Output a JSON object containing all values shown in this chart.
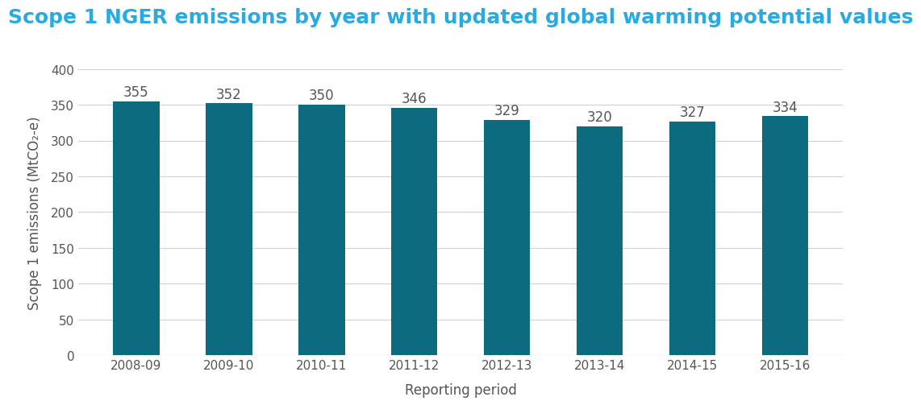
{
  "title": "Scope 1 NGER emissions by year with updated global warming potential values",
  "title_color": "#29ABE2",
  "categories": [
    "2008-09",
    "2009-10",
    "2010-11",
    "2011-12",
    "2012-13",
    "2013-14",
    "2014-15",
    "2015-16"
  ],
  "values": [
    355,
    352,
    350,
    346,
    329,
    320,
    327,
    334
  ],
  "bar_color": "#0C6B7E",
  "xlabel": "Reporting period",
  "ylabel": "Scope 1 emissions (MtCO₂-e)",
  "ylim": [
    0,
    400
  ],
  "yticks": [
    0,
    50,
    100,
    150,
    200,
    250,
    300,
    350,
    400
  ],
  "background_color": "#ffffff",
  "grid_color": "#d0d0d0",
  "title_fontsize": 18,
  "label_fontsize": 12,
  "bar_label_fontsize": 12,
  "tick_fontsize": 11,
  "tick_label_color": "#555555",
  "axis_label_color": "#555555",
  "bar_width": 0.5
}
